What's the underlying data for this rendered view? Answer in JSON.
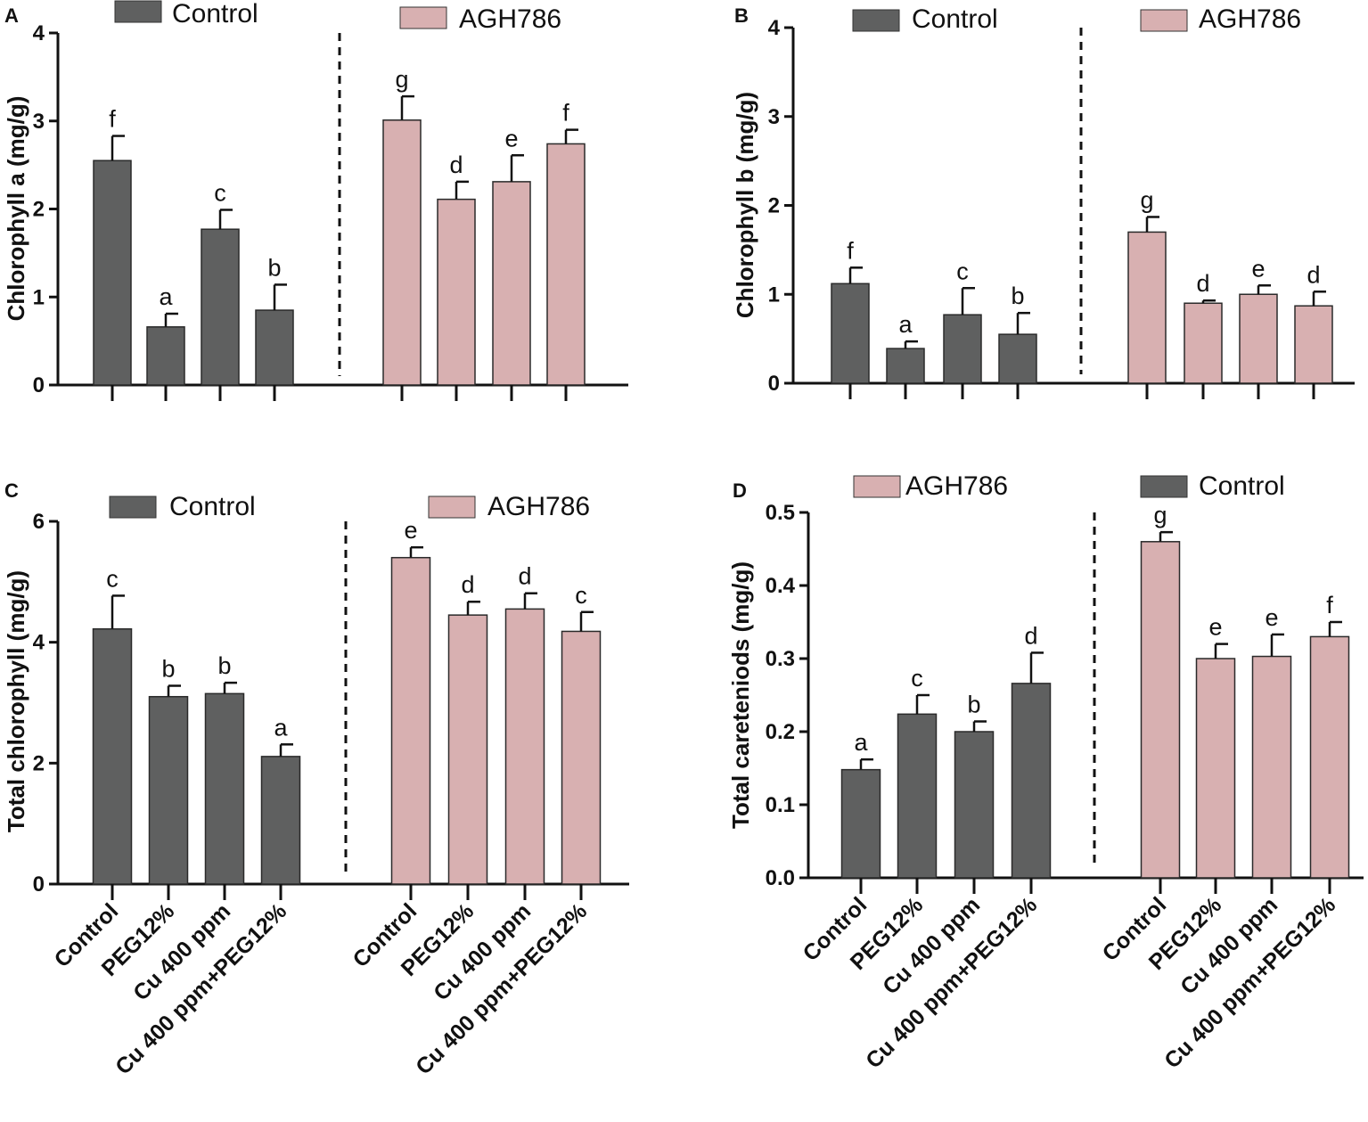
{
  "colors": {
    "control": "#5f6060",
    "agh786": "#d8b0b1",
    "axis": "#111111"
  },
  "chart_data": [
    {
      "type": "bar",
      "panel": "A",
      "ylabel": "Chlorophyll a (mg/g)",
      "ylim": [
        0,
        4
      ],
      "yticks": [
        0,
        1,
        2,
        3,
        4
      ],
      "legend": [
        {
          "label": "Control",
          "color_key": "control"
        },
        {
          "label": "AGH786",
          "color_key": "agh786"
        }
      ],
      "categories": [],
      "groups": [
        {
          "name": "Control",
          "color_key": "control",
          "values": [
            2.55,
            0.66,
            1.77,
            0.85
          ],
          "errors": [
            0.28,
            0.15,
            0.22,
            0.29
          ],
          "letters": [
            "f",
            "a",
            "c",
            "b"
          ]
        },
        {
          "name": "AGH786",
          "color_key": "agh786",
          "values": [
            3.01,
            2.11,
            2.31,
            2.74
          ],
          "errors": [
            0.27,
            0.2,
            0.3,
            0.16
          ],
          "letters": [
            "g",
            "d",
            "e",
            "f"
          ]
        }
      ]
    },
    {
      "type": "bar",
      "panel": "B",
      "ylabel": "Chlorophyll b (mg/g)",
      "ylim": [
        0,
        4
      ],
      "yticks": [
        0,
        1,
        2,
        3,
        4
      ],
      "legend": [
        {
          "label": "Control",
          "color_key": "control"
        },
        {
          "label": "AGH786",
          "color_key": "agh786"
        }
      ],
      "categories": [],
      "groups": [
        {
          "name": "Control",
          "color_key": "control",
          "values": [
            1.12,
            0.39,
            0.77,
            0.55
          ],
          "errors": [
            0.18,
            0.08,
            0.3,
            0.24
          ],
          "letters": [
            "f",
            "a",
            "c",
            "b"
          ]
        },
        {
          "name": "AGH786",
          "color_key": "agh786",
          "values": [
            1.7,
            0.9,
            1.0,
            0.87
          ],
          "errors": [
            0.17,
            0.03,
            0.1,
            0.16
          ],
          "letters": [
            "g",
            "d",
            "e",
            "d"
          ]
        }
      ]
    },
    {
      "type": "bar",
      "panel": "C",
      "ylabel": "Total chlorophyll (mg/g)",
      "ylim": [
        0,
        6
      ],
      "yticks": [
        0,
        2,
        4,
        6
      ],
      "legend": [
        {
          "label": "Control",
          "color_key": "control"
        },
        {
          "label": "AGH786",
          "color_key": "agh786"
        }
      ],
      "categories": [
        "Control",
        "PEG12%",
        "Cu 400 ppm",
        "Cu 400 ppm+PEG12%"
      ],
      "groups": [
        {
          "name": "Control",
          "color_key": "control",
          "values": [
            4.22,
            3.1,
            3.15,
            2.11
          ],
          "errors": [
            0.55,
            0.18,
            0.18,
            0.2
          ],
          "letters": [
            "c",
            "b",
            "b",
            "a"
          ]
        },
        {
          "name": "AGH786",
          "color_key": "agh786",
          "values": [
            5.4,
            4.45,
            4.55,
            4.18
          ],
          "errors": [
            0.17,
            0.22,
            0.26,
            0.32
          ],
          "letters": [
            "e",
            "d",
            "d",
            "c"
          ]
        }
      ]
    },
    {
      "type": "bar",
      "panel": "D",
      "ylabel": "Total careteniods (mg/g)",
      "ylim": [
        0,
        0.5
      ],
      "yticks": [
        "0.0",
        "0.1",
        "0.2",
        "0.3",
        "0.4",
        "0.5"
      ],
      "legend": [
        {
          "label": "AGH786",
          "color_key": "agh786"
        },
        {
          "label": "Control",
          "color_key": "control"
        }
      ],
      "categories": [
        "Control",
        "PEG12%",
        "Cu 400 ppm",
        "Cu 400 ppm+PEG12%"
      ],
      "groups": [
        {
          "name": "Control",
          "color_key": "control",
          "values": [
            0.148,
            0.224,
            0.2,
            0.266
          ],
          "errors": [
            0.014,
            0.026,
            0.014,
            0.042
          ],
          "letters": [
            "a",
            "c",
            "b",
            "d"
          ]
        },
        {
          "name": "AGH786",
          "color_key": "agh786",
          "values": [
            0.46,
            0.3,
            0.303,
            0.33
          ],
          "errors": [
            0.013,
            0.02,
            0.03,
            0.02
          ],
          "letters": [
            "g",
            "e",
            "e",
            "f"
          ]
        }
      ]
    }
  ]
}
